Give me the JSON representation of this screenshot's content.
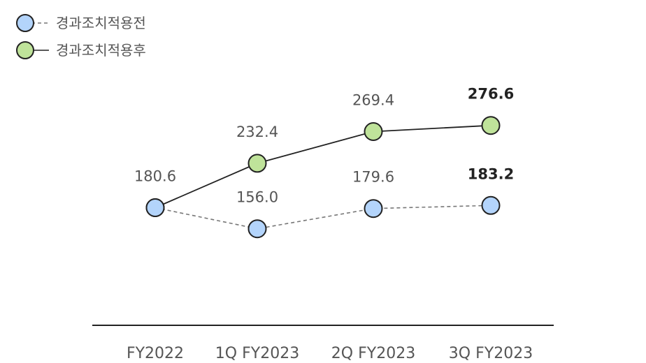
{
  "chart_data": {
    "type": "line",
    "title": "",
    "xlabel": "",
    "ylabel": "",
    "categories": [
      "FY2022",
      "1Q FY2023",
      "2Q FY2023",
      "3Q FY2023"
    ],
    "ylim": [
      0,
      300
    ],
    "grid": false,
    "legend_position": "top-left",
    "series": [
      {
        "name": "경과조치적용전",
        "values": [
          180.6,
          156.0,
          179.6,
          183.2
        ],
        "labels": [
          "180.6",
          "156.0",
          "179.6",
          "183.2"
        ],
        "line_style": "dashed",
        "line_color": "#777777",
        "marker_color": "#b3d4fb"
      },
      {
        "name": "경과조치적용후",
        "values": [
          180.6,
          232.4,
          269.4,
          276.6
        ],
        "labels": [
          "",
          "232.4",
          "269.4",
          "276.6"
        ],
        "line_style": "solid",
        "line_color": "#222222",
        "marker_color": "#bfe39a"
      }
    ],
    "emphasized_category": "3Q FY2023"
  }
}
